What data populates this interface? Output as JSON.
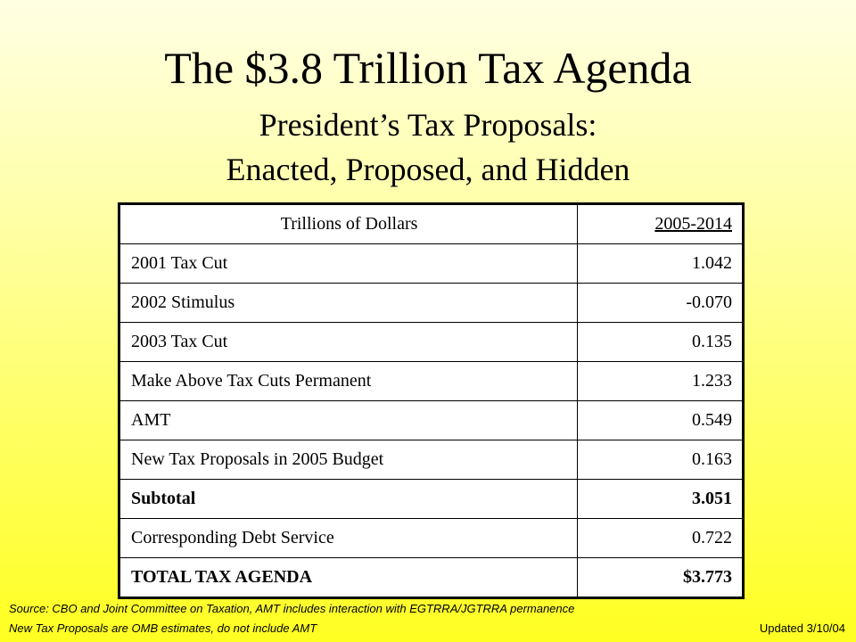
{
  "slide": {
    "title": "The $3.8 Trillion Tax Agenda",
    "subtitle_line1": "President’s Tax Proposals:",
    "subtitle_line2": "Enacted, Proposed, and Hidden"
  },
  "table": {
    "header": {
      "label": "Trillions of Dollars",
      "period": "2005-2014"
    },
    "rows": [
      {
        "label": "2001 Tax Cut",
        "value": "1.042"
      },
      {
        "label": "2002 Stimulus",
        "value": "-0.070"
      },
      {
        "label": "2003 Tax Cut",
        "value": "0.135"
      },
      {
        "label": "Make Above Tax Cuts Permanent",
        "value": "1.233"
      },
      {
        "label": "AMT",
        "value": "0.549"
      },
      {
        "label": "New Tax Proposals in 2005 Budget",
        "value": "0.163"
      },
      {
        "label": "Subtotal",
        "value": "3.051"
      },
      {
        "label": "Corresponding Debt Service",
        "value": "0.722"
      },
      {
        "label": "TOTAL TAX AGENDA",
        "value": "$3.773"
      }
    ]
  },
  "footer": {
    "source": "Source: CBO and Joint Committee on Taxation, AMT includes interaction with EGTRRA/JGTRRA permanence",
    "note": "New Tax Proposals are OMB estimates, do not include AMT",
    "updated": "Updated 3/10/04"
  }
}
